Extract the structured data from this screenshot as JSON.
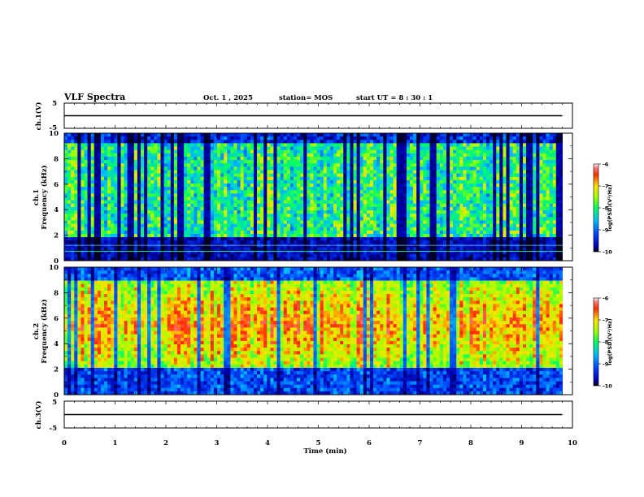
{
  "header": {
    "title": "VLF Spectra",
    "date": "Oct. 1 , 2025",
    "station": "station= MOS",
    "start": "start  UT =   8 : 30 : 1"
  },
  "chart_data": [
    {
      "type": "line",
      "name": "ch1-waveform",
      "ylabel": "ch.1(V)",
      "ylim": [
        -5,
        5
      ],
      "yticks": [
        "5",
        "-5"
      ],
      "xlim": [
        0,
        10
      ],
      "x": [
        0,
        9.8
      ],
      "y": [
        0,
        0
      ]
    },
    {
      "type": "heatmap",
      "name": "ch1-spectrogram",
      "ylabel_top": "ch.1",
      "ylabel": "Frequency (kHz)",
      "xlim": [
        0,
        10
      ],
      "ylim": [
        0,
        10
      ],
      "yticks": [
        "0",
        "2",
        "4",
        "6",
        "8",
        "10"
      ],
      "colorbar": {
        "label": "log(PSD)(V²/Hz)",
        "range": [
          -10,
          -6
        ],
        "ticks": [
          "-6",
          "-7",
          "-8",
          "-9",
          "-10"
        ]
      }
    },
    {
      "type": "heatmap",
      "name": "ch2-spectrogram",
      "ylabel_top": "ch.2",
      "ylabel": "Frequency (kHz)",
      "xlim": [
        0,
        10
      ],
      "ylim": [
        0,
        10
      ],
      "yticks": [
        "0",
        "2",
        "4",
        "6",
        "8",
        "10"
      ],
      "colorbar": {
        "label": "log(PSD)(V²/Hz)",
        "range": [
          -10,
          -6
        ],
        "ticks": [
          "-6",
          "-7",
          "-8",
          "-9",
          "-10"
        ]
      }
    },
    {
      "type": "line",
      "name": "ch3-waveform",
      "ylabel": "ch.3(V)",
      "ylim": [
        -5,
        5
      ],
      "yticks": [
        "5",
        "-5"
      ],
      "xlim": [
        0,
        10
      ],
      "x": [
        0,
        9.8
      ],
      "y": [
        0,
        0
      ]
    }
  ],
  "xaxis": {
    "label": "Time  (min)",
    "ticks": [
      "0",
      "1",
      "2",
      "3",
      "4",
      "5",
      "6",
      "7",
      "8",
      "9",
      "10"
    ]
  }
}
